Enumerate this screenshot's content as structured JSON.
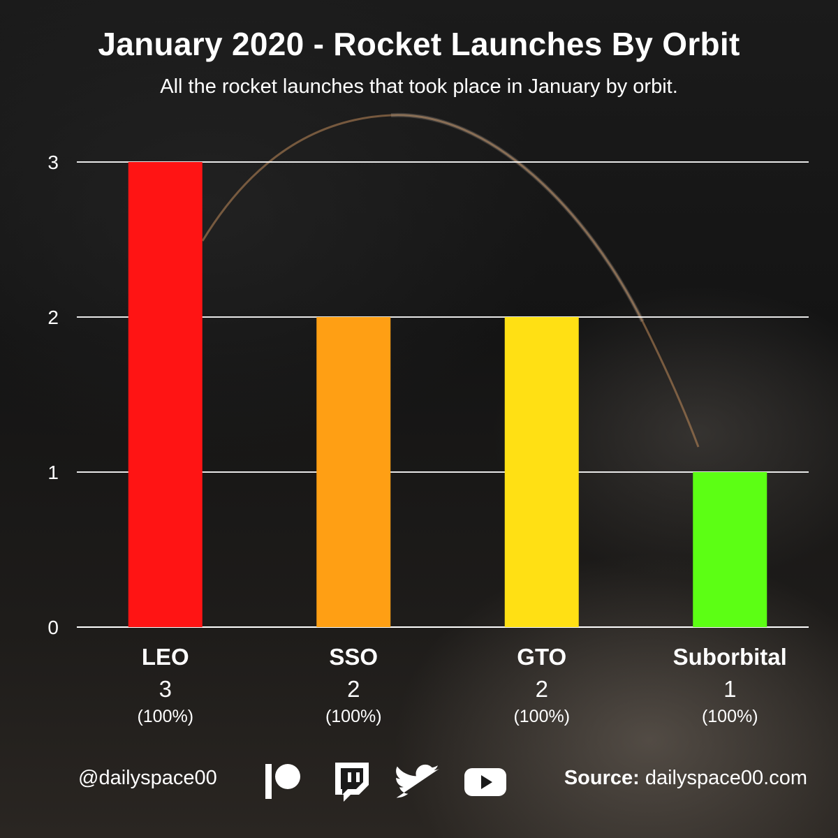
{
  "header": {
    "title": "January 2020 - Rocket Launches By Orbit",
    "subtitle": "All the rocket launches that took place in January by orbit."
  },
  "chart_data": {
    "type": "bar",
    "title": "January 2020 - Rocket Launches By Orbit",
    "subtitle": "All the rocket launches that took place in January by orbit.",
    "xlabel": "",
    "ylabel": "",
    "categories": [
      "LEO",
      "SSO",
      "GTO",
      "Suborbital"
    ],
    "values": [
      3,
      2,
      2,
      1
    ],
    "value_labels": [
      "3",
      "2",
      "2",
      "1"
    ],
    "percent_labels": [
      "(100%)",
      "(100%)",
      "(100%)",
      "(100%)"
    ],
    "colors": [
      "#ff1414",
      "#ff9f14",
      "#ffe014",
      "#5cff14"
    ],
    "ylim": [
      0,
      3
    ],
    "yticks": [
      0,
      1,
      2,
      3
    ],
    "grid": true
  },
  "footer": {
    "handle": "@dailyspace00",
    "source_label": "Source:",
    "source_value": "dailyspace00.com",
    "icons": [
      "patreon-icon",
      "twitch-icon",
      "twitter-icon",
      "youtube-icon"
    ]
  }
}
